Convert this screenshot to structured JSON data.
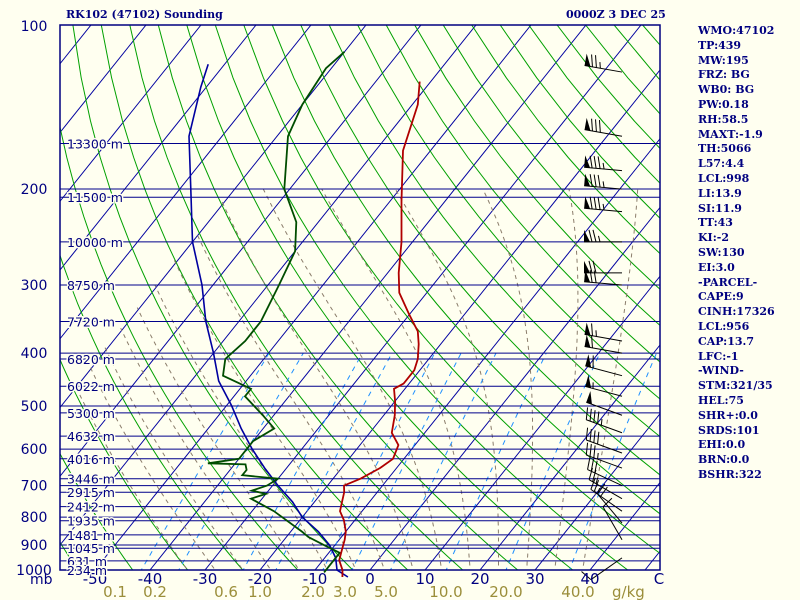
{
  "header": {
    "station": "RK102 (47102) Sounding",
    "time": "0000Z  3 DEC 25"
  },
  "indices": [
    "WMO:47102",
    "TP:439",
    "MW:195",
    "FRZ: BG",
    "WB0: BG",
    "PW:0.18",
    "RH:58.5",
    "MAXT:-1.9",
    "TH:5066",
    "L57:4.4",
    "LCL:998",
    "LI:13.9",
    "SI:11.9",
    "TT:43",
    "KI:-2",
    "SW:130",
    "EI:3.0",
    "-PARCEL-",
    "CAPE:9",
    "CINH:17326",
    "LCL:956",
    "CAP:13.7",
    "LFC:-1",
    "-WIND-",
    "STM:321/35",
    "HEL:75",
    "SHR+:0.0",
    "SRDS:101",
    "EHI:0.0",
    "BRN:0.0",
    "BSHR:322"
  ],
  "colors": {
    "frame": "#000080",
    "isobar": "#00008b",
    "isotherm": "#0000a0",
    "dry_adiabat": "#00a000",
    "moist_adiabat": "#8b7d6b",
    "mixing_ratio": "#1e90ff",
    "temperature": "#b00000",
    "dewpoint": "#004d00",
    "parcel": "#0000a0",
    "label": "#000080",
    "mixing_label": "#9b8e3a",
    "background": "#fffff0"
  },
  "chart_data": {
    "type": "skew-t",
    "title": "RK102 (47102) Sounding",
    "pressure_axis": {
      "unit": "mb",
      "range": [
        1000,
        100
      ],
      "ticks": [
        100,
        200,
        300,
        400,
        500,
        600,
        700,
        800,
        900,
        1000
      ]
    },
    "temperature_axis": {
      "ticks": [
        -50,
        -40,
        -30,
        -20,
        -10,
        0,
        10,
        20,
        30,
        40
      ],
      "end_label": "C"
    },
    "height_labels": [
      {
        "p": 165,
        "label": "13300 m"
      },
      {
        "p": 207,
        "label": "11500 m"
      },
      {
        "p": 250,
        "label": "10000 m"
      },
      {
        "p": 300,
        "label": "8750 m"
      },
      {
        "p": 350,
        "label": "7720 m"
      },
      {
        "p": 410,
        "label": "6820 m"
      },
      {
        "p": 460,
        "label": "6022 m"
      },
      {
        "p": 515,
        "label": "5300 m"
      },
      {
        "p": 568,
        "label": "4632 m"
      },
      {
        "p": 625,
        "label": "4016 m"
      },
      {
        "p": 680,
        "label": "3446 m"
      },
      {
        "p": 720,
        "label": "2915 m"
      },
      {
        "p": 765,
        "label": "2412 m"
      },
      {
        "p": 812,
        "label": "1935 m"
      },
      {
        "p": 862,
        "label": "1481 m"
      },
      {
        "p": 912,
        "label": "1045 m"
      },
      {
        "p": 962,
        "label": "631 m"
      },
      {
        "p": 1000,
        "label": "234 m"
      }
    ],
    "mixing_ratio_labels": [
      "0.1",
      "0.2",
      "0.6",
      "1.0",
      "2.0",
      "3.0",
      "5.0",
      "10.0",
      "20.0",
      "40.0"
    ],
    "mixing_ratio_values": [
      0.1,
      0.2,
      0.6,
      1.0,
      2.0,
      3.0,
      5.0,
      10.0,
      20.0,
      40.0
    ],
    "mixing_ratio_unit": "g/kg",
    "temperature_profile": [
      [
        1030,
        -4
      ],
      [
        1000,
        -5
      ],
      [
        960,
        -7
      ],
      [
        920,
        -8
      ],
      [
        880,
        -9
      ],
      [
        850,
        -10
      ],
      [
        810,
        -12
      ],
      [
        780,
        -14
      ],
      [
        750,
        -15
      ],
      [
        720,
        -16
      ],
      [
        700,
        -17
      ],
      [
        680,
        -15
      ],
      [
        650,
        -13
      ],
      [
        625,
        -12
      ],
      [
        590,
        -13
      ],
      [
        560,
        -16
      ],
      [
        520,
        -18
      ],
      [
        490,
        -20
      ],
      [
        465,
        -22
      ],
      [
        455,
        -21
      ],
      [
        430,
        -21
      ],
      [
        410,
        -22
      ],
      [
        385,
        -24
      ],
      [
        365,
        -26
      ],
      [
        340,
        -30
      ],
      [
        310,
        -35
      ],
      [
        285,
        -38
      ],
      [
        250,
        -42
      ],
      [
        210,
        -48
      ],
      [
        170,
        -55
      ],
      [
        140,
        -59
      ],
      [
        127,
        -62
      ]
    ],
    "dewpoint_profile": [
      [
        1010,
        -8
      ],
      [
        990,
        -8
      ],
      [
        930,
        -8
      ],
      [
        900,
        -12
      ],
      [
        870,
        -16
      ],
      [
        850,
        -18
      ],
      [
        780,
        -26
      ],
      [
        740,
        -32
      ],
      [
        725,
        -30
      ],
      [
        715,
        -33
      ],
      [
        700,
        -31
      ],
      [
        680,
        -30
      ],
      [
        670,
        -37
      ],
      [
        655,
        -37
      ],
      [
        640,
        -38
      ],
      [
        637,
        -45
      ],
      [
        625,
        -40
      ],
      [
        580,
        -40
      ],
      [
        550,
        -38
      ],
      [
        520,
        -42
      ],
      [
        480,
        -48
      ],
      [
        465,
        -48
      ],
      [
        440,
        -55
      ],
      [
        410,
        -57
      ],
      [
        380,
        -56
      ],
      [
        350,
        -56
      ],
      [
        300,
        -58
      ],
      [
        260,
        -60
      ],
      [
        230,
        -64
      ],
      [
        200,
        -71
      ],
      [
        160,
        -78
      ],
      [
        140,
        -80
      ],
      [
        120,
        -81
      ],
      [
        112,
        -80
      ]
    ],
    "parcel_profile": [
      [
        1030,
        -3
      ],
      [
        1000,
        -6
      ],
      [
        950,
        -8
      ],
      [
        900,
        -11
      ],
      [
        850,
        -15
      ],
      [
        800,
        -20
      ],
      [
        750,
        -24
      ],
      [
        700,
        -29
      ],
      [
        650,
        -34
      ],
      [
        600,
        -39
      ],
      [
        550,
        -44
      ],
      [
        500,
        -49
      ],
      [
        450,
        -55
      ],
      [
        400,
        -60
      ],
      [
        350,
        -66
      ],
      [
        300,
        -72
      ],
      [
        250,
        -80
      ],
      [
        200,
        -88
      ],
      [
        160,
        -96
      ],
      [
        130,
        -101
      ],
      [
        118,
        -103
      ]
    ],
    "wind_barbs": [
      {
        "p": 122,
        "dir": 280,
        "spd": 75
      },
      {
        "p": 160,
        "dir": 280,
        "spd": 80
      },
      {
        "p": 185,
        "dir": 275,
        "spd": 85
      },
      {
        "p": 200,
        "dir": 275,
        "spd": 85
      },
      {
        "p": 220,
        "dir": 275,
        "spd": 85
      },
      {
        "p": 250,
        "dir": 270,
        "spd": 75
      },
      {
        "p": 285,
        "dir": 270,
        "spd": 70
      },
      {
        "p": 300,
        "dir": 275,
        "spd": 70
      },
      {
        "p": 380,
        "dir": 280,
        "spd": 65
      },
      {
        "p": 400,
        "dir": 280,
        "spd": 60
      },
      {
        "p": 440,
        "dir": 285,
        "spd": 60
      },
      {
        "p": 480,
        "dir": 285,
        "spd": 55
      },
      {
        "p": 520,
        "dir": 290,
        "spd": 50
      },
      {
        "p": 560,
        "dir": 290,
        "spd": 45
      },
      {
        "p": 610,
        "dir": 290,
        "spd": 40
      },
      {
        "p": 650,
        "dir": 290,
        "spd": 35
      },
      {
        "p": 700,
        "dir": 295,
        "spd": 30
      },
      {
        "p": 740,
        "dir": 300,
        "spd": 25
      },
      {
        "p": 780,
        "dir": 305,
        "spd": 25
      },
      {
        "p": 820,
        "dir": 320,
        "spd": 20
      },
      {
        "p": 880,
        "dir": 330,
        "spd": 10
      },
      {
        "p": 950,
        "dir": 235,
        "spd": 10
      }
    ]
  }
}
